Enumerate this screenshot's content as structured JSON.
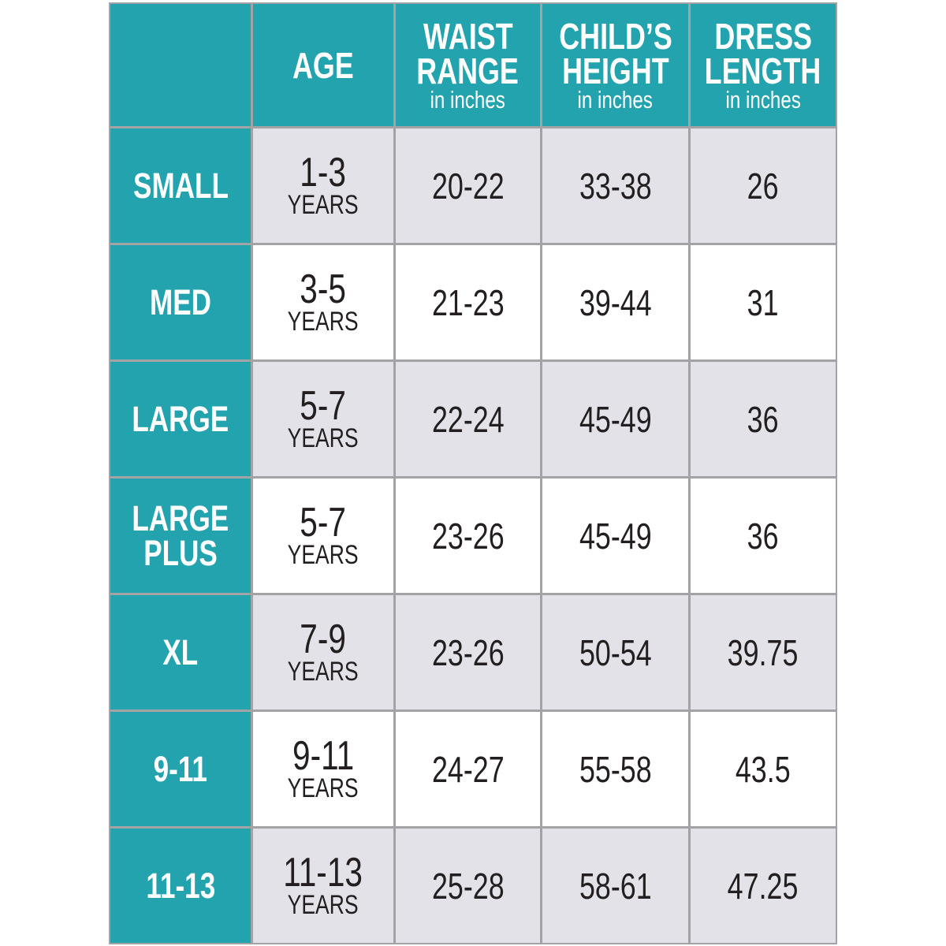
{
  "table": {
    "header": [
      {
        "title": [
          "AGE"
        ]
      },
      {
        "title": [
          "WAIST",
          "RANGE"
        ],
        "subtitle": "in inches"
      },
      {
        "title": [
          "CHILD’S",
          "HEIGHT"
        ],
        "subtitle": "in inches"
      },
      {
        "title": [
          "DRESS",
          "LENGTH"
        ],
        "subtitle": "in inches"
      }
    ],
    "rows": [
      {
        "size": [
          "SMALL"
        ],
        "age": "1-3",
        "age_unit": "YEARS",
        "waist": "20-22",
        "height": "33-38",
        "length": "26"
      },
      {
        "size": [
          "MED"
        ],
        "age": "3-5",
        "age_unit": "YEARS",
        "waist": "21-23",
        "height": "39-44",
        "length": "31"
      },
      {
        "size": [
          "LARGE"
        ],
        "age": "5-7",
        "age_unit": "YEARS",
        "waist": "22-24",
        "height": "45-49",
        "length": "36"
      },
      {
        "size": [
          "LARGE",
          "PLUS"
        ],
        "age": "5-7",
        "age_unit": "YEARS",
        "waist": "23-26",
        "height": "45-49",
        "length": "36"
      },
      {
        "size": [
          "XL"
        ],
        "age": "7-9",
        "age_unit": "YEARS",
        "waist": "23-26",
        "height": "50-54",
        "length": "39.75"
      },
      {
        "size": [
          "9-11"
        ],
        "age": "9-11",
        "age_unit": "YEARS",
        "waist": "24-27",
        "height": "55-58",
        "length": "43.5"
      },
      {
        "size": [
          "11-13"
        ],
        "age": "11-13",
        "age_unit": "YEARS",
        "waist": "25-28",
        "height": "58-61",
        "length": "47.25"
      }
    ]
  }
}
